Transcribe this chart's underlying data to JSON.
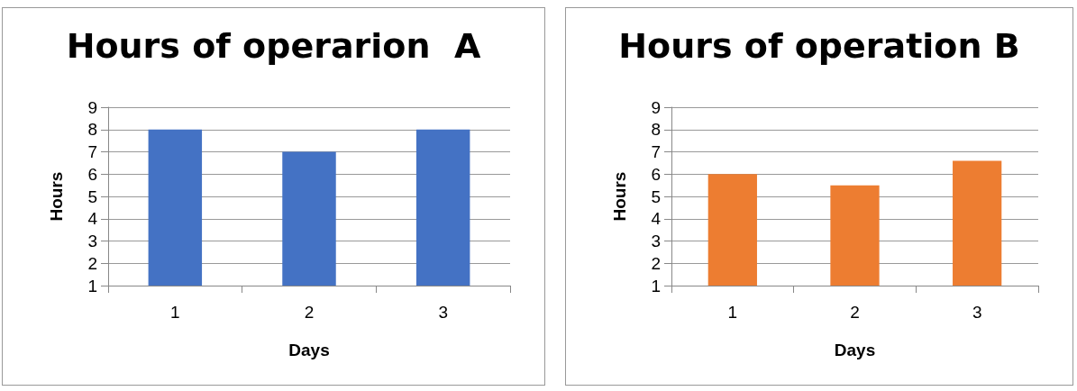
{
  "chart_data": [
    {
      "type": "bar",
      "title": "Hours of operarion  A",
      "xlabel": "Days",
      "ylabel": "Hours",
      "categories": [
        "1",
        "2",
        "3"
      ],
      "values": [
        8,
        7,
        8
      ],
      "color": "#4472c4",
      "ylim": [
        1,
        9
      ],
      "yticks": [
        1,
        2,
        3,
        4,
        5,
        6,
        7,
        8,
        9
      ],
      "grid": "y"
    },
    {
      "type": "bar",
      "title": "Hours of operation B",
      "xlabel": "Days",
      "ylabel": "Hours",
      "categories": [
        "1",
        "2",
        "3"
      ],
      "values": [
        6,
        5.5,
        6.6
      ],
      "color": "#ed7d31",
      "ylim": [
        1,
        9
      ],
      "yticks": [
        1,
        2,
        3,
        4,
        5,
        6,
        7,
        8,
        9
      ],
      "grid": "y"
    }
  ]
}
